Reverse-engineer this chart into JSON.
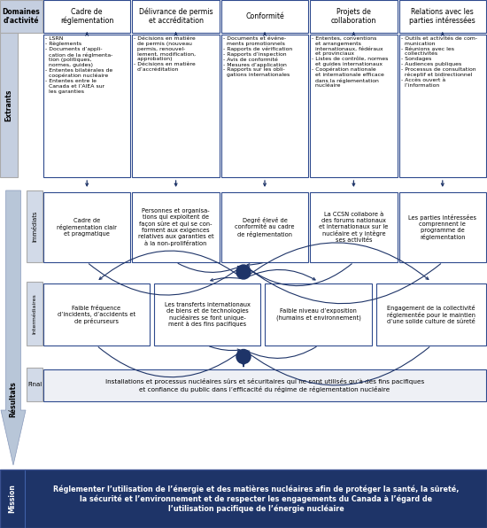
{
  "bg_color": "#ffffff",
  "dark_blue": "#1e3468",
  "light_blue_lbl": "#c5cfe0",
  "results_arrow_fill": "#b8c6d8",
  "box_border": "#2e4a8e",
  "mission_bg": "#1e3468",
  "domains_header": [
    "Cadre de\nréglementation",
    "Délivrance de permis\net accréditation",
    "Conformité",
    "Projets de\ncollaboration",
    "Relations avec les\nparties intéressées"
  ],
  "extrants_cols": [
    "- LSRN\n- Règlements\n- Documents d’appli-\n  cation de la réglmenta-\n  tion (politiques,\n  normes, guides)\n- Ententes bilatérales de\n  coopération nucléaire\n- Ententes entre le\n  Canada et l’AIEA sur\n  les garanties",
    "- Décisions en matière\n  de permis (nouveau\n  permis, renouvel-\n  lement, modification,\n  approbation)\n- Décisions en matière\n  d’accréditation",
    "- Documents et événe-\n  ments promotionnels\n- Rapports de vérification\n- Rapports d’inspection\n- Avis de conformité\n- Mesures d’application\n- Rapports sur les obli-\n  gations internationales",
    "- Ententes, conventions\n  et arrangements\n  internationaux, fédéraux\n  et provinciaux\n- Listes de contrôle, normes\n  et guides internationaux\n- Coopération nationale\n  et internationale efficace\n  dans la réglementation\n  nucléaire",
    "- Outils et activités de com-\n  munication\n- Réunions avec les\n  collectivités\n- Sondages\n- Audiences publiques\n- Processus de consultation\n  réceptif et bidirectionnel\n- Accès ouvert à\n  l’information"
  ],
  "immediats_cols": [
    "Cadre de\nréglementation clair\net pragmatique",
    "Personnes et organisa-\ntions qui exploitent de\nfaçon sûre et qui se con-\nforment aux exigences\nrelatives aux garanties et\nà la non-prolifération",
    "Degré élevé de\nconformité au cadre\nde réglementation",
    "La CCSN collabore à\ndes forums nationaux\net internationaux sur le\nnucléaire et y intègre\nses activités",
    "Les parties intéressées\ncomprennent le\nprogramme de\nréglementation"
  ],
  "intermediaires_texts": [
    "Faible fréquence\nd’incidents, d’accidents et\nde précurseurs",
    "Les transferts internationaux\nde biens et de technologies\nnucléaires se font unique-\nment à des fins pacifiques",
    "Faible niveau d’exposition\n(humains et environnement)",
    "Engagement de la collectivité\nréglementée pour le maintien\nd’une solide culture de sûreté"
  ],
  "final_text": "Installations et processus nucléaires sûrs et sécuritaires qui ne sont utilisés qu’à des fins pacifiques\net confiance du public dans l’efficacité du régime de réglementation nucléaire",
  "mission_text": "Réglementer l’utilisation de l’énergie et des matières nucléaires afin de protéger la santé, la sûreté,\nla sécurité et l’environnement et de respecter les engagements du Canada à l’égard de\nl’utilisation pacifique de l’énergie nucléaire"
}
